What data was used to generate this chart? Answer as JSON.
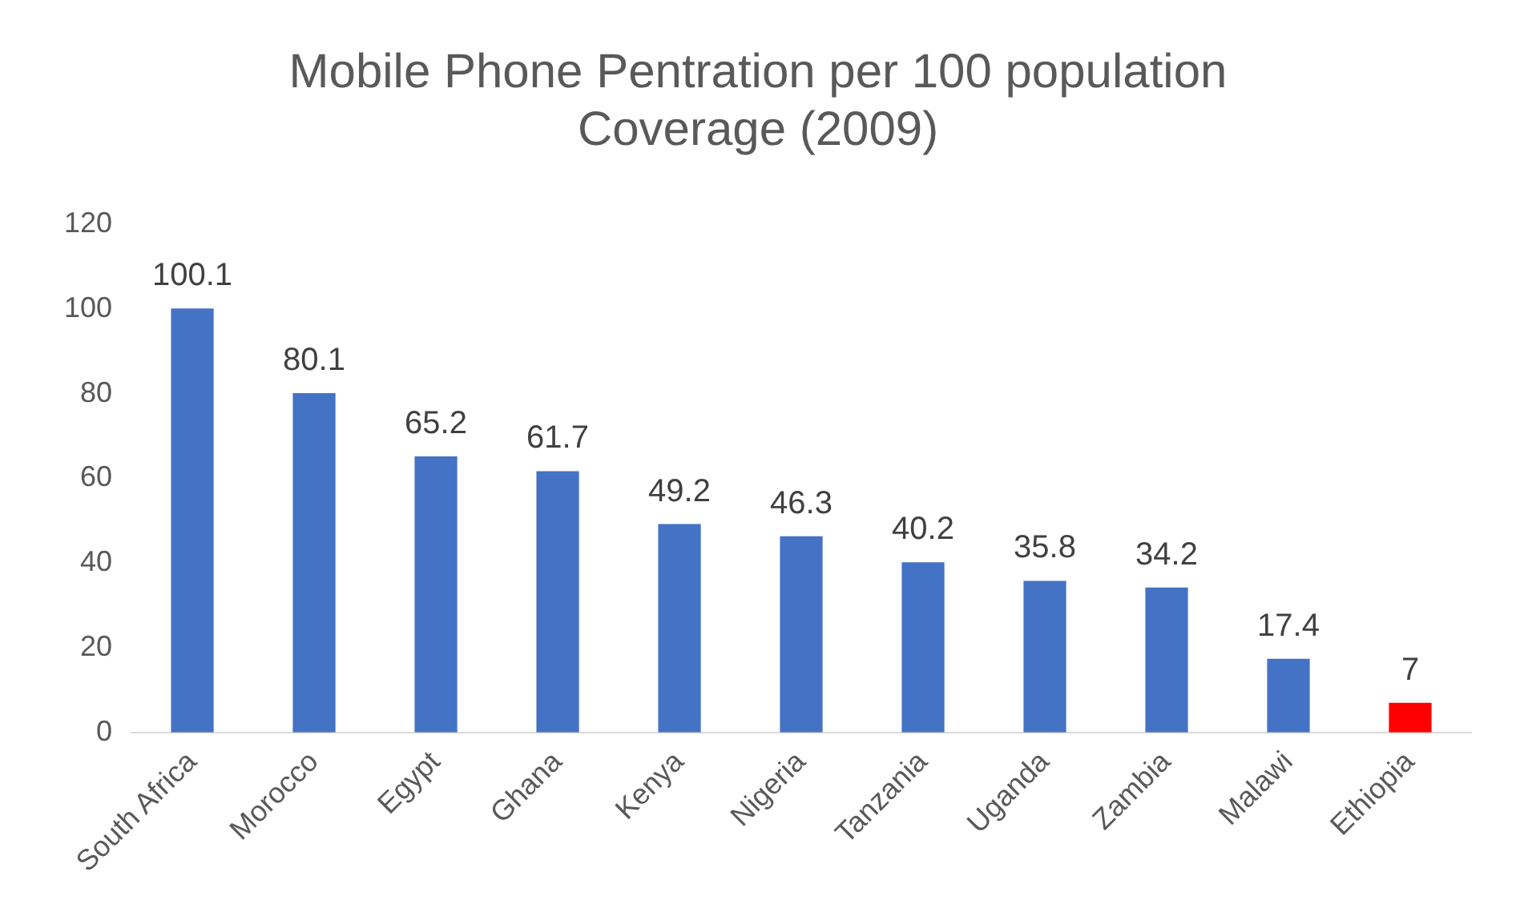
{
  "chart_data": {
    "type": "bar",
    "title": "Mobile Phone Pentration per 100 population Coverage (2009)",
    "categories": [
      "South Africa",
      "Morocco",
      "Egypt",
      "Ghana",
      "Kenya",
      "Nigeria",
      "Tanzania",
      "Uganda",
      "Zambia",
      "Malawi",
      "Ethiopia"
    ],
    "values": [
      100.1,
      80.1,
      65.2,
      61.7,
      49.2,
      46.3,
      40.2,
      35.8,
      34.2,
      17.4,
      7
    ],
    "colors": [
      "#4472c4",
      "#4472c4",
      "#4472c4",
      "#4472c4",
      "#4472c4",
      "#4472c4",
      "#4472c4",
      "#4472c4",
      "#4472c4",
      "#4472c4",
      "#ff0000"
    ],
    "ylim": [
      0,
      120
    ],
    "yticks": [
      0,
      20,
      40,
      60,
      80,
      100,
      120
    ],
    "grid": false,
    "legend": false,
    "data_labels": true
  }
}
